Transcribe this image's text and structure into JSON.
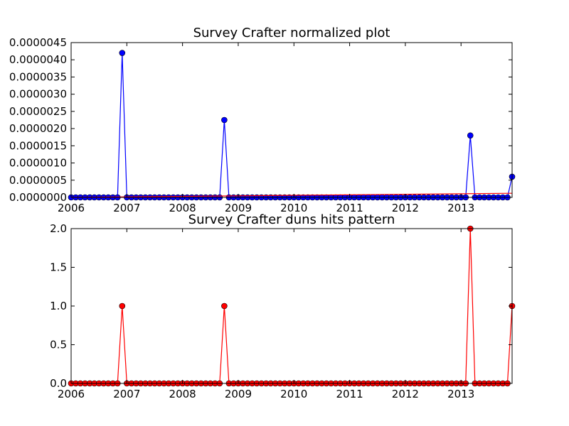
{
  "chart_data": [
    {
      "type": "line",
      "title": "Survey Crafter normalized plot",
      "xlabel": "",
      "ylabel": "",
      "xlim": [
        "2006-01",
        "2013-12"
      ],
      "ylim": [
        0,
        4.5e-06
      ],
      "x_tick_labels": [
        "2006",
        "2007",
        "2008",
        "2009",
        "2010",
        "2011",
        "2012",
        "2013"
      ],
      "y_tick_labels": [
        "0.0000000",
        "0.0000005",
        "0.0000010",
        "0.0000015",
        "0.0000020",
        "0.0000025",
        "0.0000030",
        "0.0000035",
        "0.0000040",
        "0.0000045"
      ],
      "grid": false,
      "series": [
        {
          "color": "#0000ff",
          "marker": "circle",
          "x": [
            "2006-01",
            "2006-02",
            "2006-03",
            "2006-04",
            "2006-05",
            "2006-06",
            "2006-07",
            "2006-08",
            "2006-09",
            "2006-10",
            "2006-11",
            "2006-12",
            "2007-01",
            "2007-02",
            "2007-03",
            "2007-04",
            "2007-05",
            "2007-06",
            "2007-07",
            "2007-08",
            "2007-09",
            "2007-10",
            "2007-11",
            "2007-12",
            "2008-01",
            "2008-02",
            "2008-03",
            "2008-04",
            "2008-05",
            "2008-06",
            "2008-07",
            "2008-08",
            "2008-09",
            "2008-10",
            "2008-11",
            "2008-12",
            "2009-01",
            "2009-02",
            "2009-03",
            "2009-04",
            "2009-05",
            "2009-06",
            "2009-07",
            "2009-08",
            "2009-09",
            "2009-10",
            "2009-11",
            "2009-12",
            "2010-01",
            "2010-02",
            "2010-03",
            "2010-04",
            "2010-05",
            "2010-06",
            "2010-07",
            "2010-08",
            "2010-09",
            "2010-10",
            "2010-11",
            "2010-12",
            "2011-01",
            "2011-02",
            "2011-03",
            "2011-04",
            "2011-05",
            "2011-06",
            "2011-07",
            "2011-08",
            "2011-09",
            "2011-10",
            "2011-11",
            "2011-12",
            "2012-01",
            "2012-02",
            "2012-03",
            "2012-04",
            "2012-05",
            "2012-06",
            "2012-07",
            "2012-08",
            "2012-09",
            "2012-10",
            "2012-11",
            "2012-12",
            "2013-01",
            "2013-02",
            "2013-03",
            "2013-04",
            "2013-05",
            "2013-06",
            "2013-07",
            "2013-08",
            "2013-09",
            "2013-10",
            "2013-11",
            "2013-12"
          ],
          "values": [
            0,
            0,
            0,
            0,
            0,
            0,
            0,
            0,
            0,
            0,
            0,
            4.2e-06,
            0,
            0,
            0,
            0,
            0,
            0,
            0,
            0,
            0,
            0,
            0,
            0,
            0,
            0,
            0,
            0,
            0,
            0,
            0,
            0,
            0,
            2.25e-06,
            0,
            0,
            0,
            0,
            0,
            0,
            0,
            0,
            0,
            0,
            0,
            0,
            0,
            0,
            0,
            0,
            0,
            0,
            0,
            0,
            0,
            0,
            0,
            0,
            0,
            0,
            0,
            0,
            0,
            0,
            0,
            0,
            0,
            0,
            0,
            0,
            0,
            0,
            0,
            0,
            0,
            0,
            0,
            0,
            0,
            0,
            0,
            0,
            0,
            0,
            0,
            0,
            1.8e-06,
            0,
            0,
            0,
            0,
            0,
            0,
            0,
            0,
            6e-07
          ]
        },
        {
          "color": "#ff0000",
          "marker": "none",
          "x": [
            "2006-01",
            "2013-12"
          ],
          "values": [
            0,
            1.2e-07
          ]
        }
      ]
    },
    {
      "type": "line",
      "title": "Survey Crafter duns hits pattern",
      "xlabel": "",
      "ylabel": "",
      "xlim": [
        "2006-01",
        "2013-12"
      ],
      "ylim": [
        0,
        2.0
      ],
      "x_tick_labels": [
        "2006",
        "2007",
        "2008",
        "2009",
        "2010",
        "2011",
        "2012",
        "2013"
      ],
      "y_tick_labels": [
        "0.0",
        "0.5",
        "1.0",
        "1.5",
        "2.0"
      ],
      "grid": false,
      "series": [
        {
          "color": "#ff0000",
          "marker": "circle",
          "x": [
            "2006-01",
            "2006-02",
            "2006-03",
            "2006-04",
            "2006-05",
            "2006-06",
            "2006-07",
            "2006-08",
            "2006-09",
            "2006-10",
            "2006-11",
            "2006-12",
            "2007-01",
            "2007-02",
            "2007-03",
            "2007-04",
            "2007-05",
            "2007-06",
            "2007-07",
            "2007-08",
            "2007-09",
            "2007-10",
            "2007-11",
            "2007-12",
            "2008-01",
            "2008-02",
            "2008-03",
            "2008-04",
            "2008-05",
            "2008-06",
            "2008-07",
            "2008-08",
            "2008-09",
            "2008-10",
            "2008-11",
            "2008-12",
            "2009-01",
            "2009-02",
            "2009-03",
            "2009-04",
            "2009-05",
            "2009-06",
            "2009-07",
            "2009-08",
            "2009-09",
            "2009-10",
            "2009-11",
            "2009-12",
            "2010-01",
            "2010-02",
            "2010-03",
            "2010-04",
            "2010-05",
            "2010-06",
            "2010-07",
            "2010-08",
            "2010-09",
            "2010-10",
            "2010-11",
            "2010-12",
            "2011-01",
            "2011-02",
            "2011-03",
            "2011-04",
            "2011-05",
            "2011-06",
            "2011-07",
            "2011-08",
            "2011-09",
            "2011-10",
            "2011-11",
            "2011-12",
            "2012-01",
            "2012-02",
            "2012-03",
            "2012-04",
            "2012-05",
            "2012-06",
            "2012-07",
            "2012-08",
            "2012-09",
            "2012-10",
            "2012-11",
            "2012-12",
            "2013-01",
            "2013-02",
            "2013-03",
            "2013-04",
            "2013-05",
            "2013-06",
            "2013-07",
            "2013-08",
            "2013-09",
            "2013-10",
            "2013-11",
            "2013-12"
          ],
          "values": [
            0,
            0,
            0,
            0,
            0,
            0,
            0,
            0,
            0,
            0,
            0,
            1,
            0,
            0,
            0,
            0,
            0,
            0,
            0,
            0,
            0,
            0,
            0,
            0,
            0,
            0,
            0,
            0,
            0,
            0,
            0,
            0,
            0,
            1,
            0,
            0,
            0,
            0,
            0,
            0,
            0,
            0,
            0,
            0,
            0,
            0,
            0,
            0,
            0,
            0,
            0,
            0,
            0,
            0,
            0,
            0,
            0,
            0,
            0,
            0,
            0,
            0,
            0,
            0,
            0,
            0,
            0,
            0,
            0,
            0,
            0,
            0,
            0,
            0,
            0,
            0,
            0,
            0,
            0,
            0,
            0,
            0,
            0,
            0,
            0,
            0,
            2,
            0,
            0,
            0,
            0,
            0,
            0,
            0,
            0,
            1
          ]
        }
      ]
    }
  ]
}
